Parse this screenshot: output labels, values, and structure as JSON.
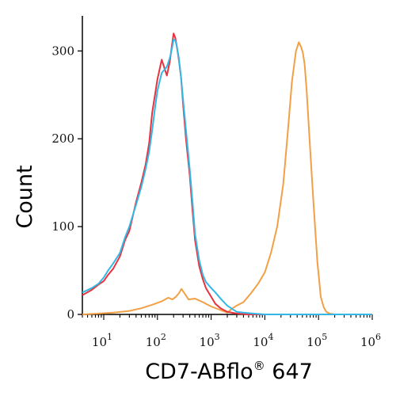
{
  "chart_data": {
    "type": "line",
    "title": "",
    "xlabel": "CD7-ABflo",
    "xlabel_superscript": "®",
    "xlabel_suffix": " 647",
    "ylabel": "Count",
    "xscale": "log",
    "xlim": [
      4,
      1000000
    ],
    "ylim": [
      0,
      340
    ],
    "x_ticks": [
      {
        "base": "10",
        "exp": "1",
        "value": 10
      },
      {
        "base": "10",
        "exp": "2",
        "value": 100
      },
      {
        "base": "10",
        "exp": "3",
        "value": 1000
      },
      {
        "base": "10",
        "exp": "4",
        "value": 10000
      },
      {
        "base": "10",
        "exp": "5",
        "value": 100000
      },
      {
        "base": "10",
        "exp": "6",
        "value": 1000000
      }
    ],
    "y_ticks": [
      {
        "label": "0",
        "value": 0
      },
      {
        "label": "100",
        "value": 100
      },
      {
        "label": "200",
        "value": 200
      },
      {
        "label": "300",
        "value": 300
      }
    ],
    "grid": false,
    "legend": "none",
    "series": [
      {
        "color": "#f2a046",
        "x": [
          4,
          8,
          15,
          30,
          50,
          80,
          120,
          160,
          190,
          220,
          250,
          280,
          320,
          380,
          500,
          700,
          1000,
          1500,
          2000,
          2500,
          3000,
          4000,
          5500,
          7500,
          10000,
          13000,
          17000,
          22000,
          27000,
          32000,
          38000,
          43000,
          47000,
          51000,
          55000,
          60000,
          68000,
          80000,
          95000,
          110000,
          125000,
          140000,
          160000,
          200000,
          400000,
          1000000
        ],
        "y": [
          0,
          1,
          2,
          4,
          7,
          11,
          15,
          19,
          17,
          20,
          24,
          29,
          24,
          17,
          18,
          14,
          9,
          5,
          2,
          7,
          10,
          14,
          24,
          35,
          48,
          70,
          100,
          148,
          210,
          265,
          300,
          310,
          305,
          298,
          285,
          255,
          200,
          130,
          60,
          20,
          8,
          3,
          1,
          0,
          0,
          0
        ]
      },
      {
        "color": "#e8323c",
        "x": [
          4,
          6,
          8,
          10,
          12,
          15,
          20,
          25,
          30,
          40,
          50,
          60,
          70,
          80,
          90,
          100,
          120,
          150,
          170,
          185,
          200,
          215,
          230,
          250,
          275,
          300,
          340,
          400,
          450,
          500,
          600,
          700,
          800,
          1000,
          1200,
          1500,
          2000,
          3000,
          5000,
          8000,
          20000,
          1000000
        ],
        "y": [
          22,
          28,
          34,
          38,
          45,
          52,
          66,
          85,
          95,
          128,
          150,
          170,
          195,
          230,
          250,
          268,
          290,
          272,
          288,
          305,
          320,
          315,
          305,
          290,
          270,
          240,
          200,
          158,
          118,
          85,
          55,
          40,
          30,
          20,
          12,
          7,
          3,
          1,
          0,
          0,
          0,
          0
        ]
      },
      {
        "color": "#35b7e6",
        "x": [
          4,
          6,
          8,
          10,
          12,
          15,
          20,
          25,
          30,
          40,
          50,
          60,
          70,
          80,
          90,
          100,
          120,
          150,
          170,
          185,
          200,
          215,
          230,
          250,
          275,
          300,
          340,
          400,
          450,
          500,
          600,
          700,
          800,
          1000,
          1200,
          1500,
          2000,
          2500,
          3000,
          4000,
          6000,
          10000,
          20000,
          1000000
        ],
        "y": [
          25,
          30,
          35,
          42,
          50,
          58,
          70,
          88,
          100,
          125,
          145,
          165,
          185,
          210,
          235,
          255,
          275,
          282,
          292,
          302,
          313,
          312,
          305,
          292,
          270,
          245,
          210,
          165,
          128,
          92,
          62,
          45,
          37,
          30,
          25,
          18,
          10,
          6,
          3,
          2,
          1,
          0,
          0,
          0
        ]
      }
    ]
  }
}
